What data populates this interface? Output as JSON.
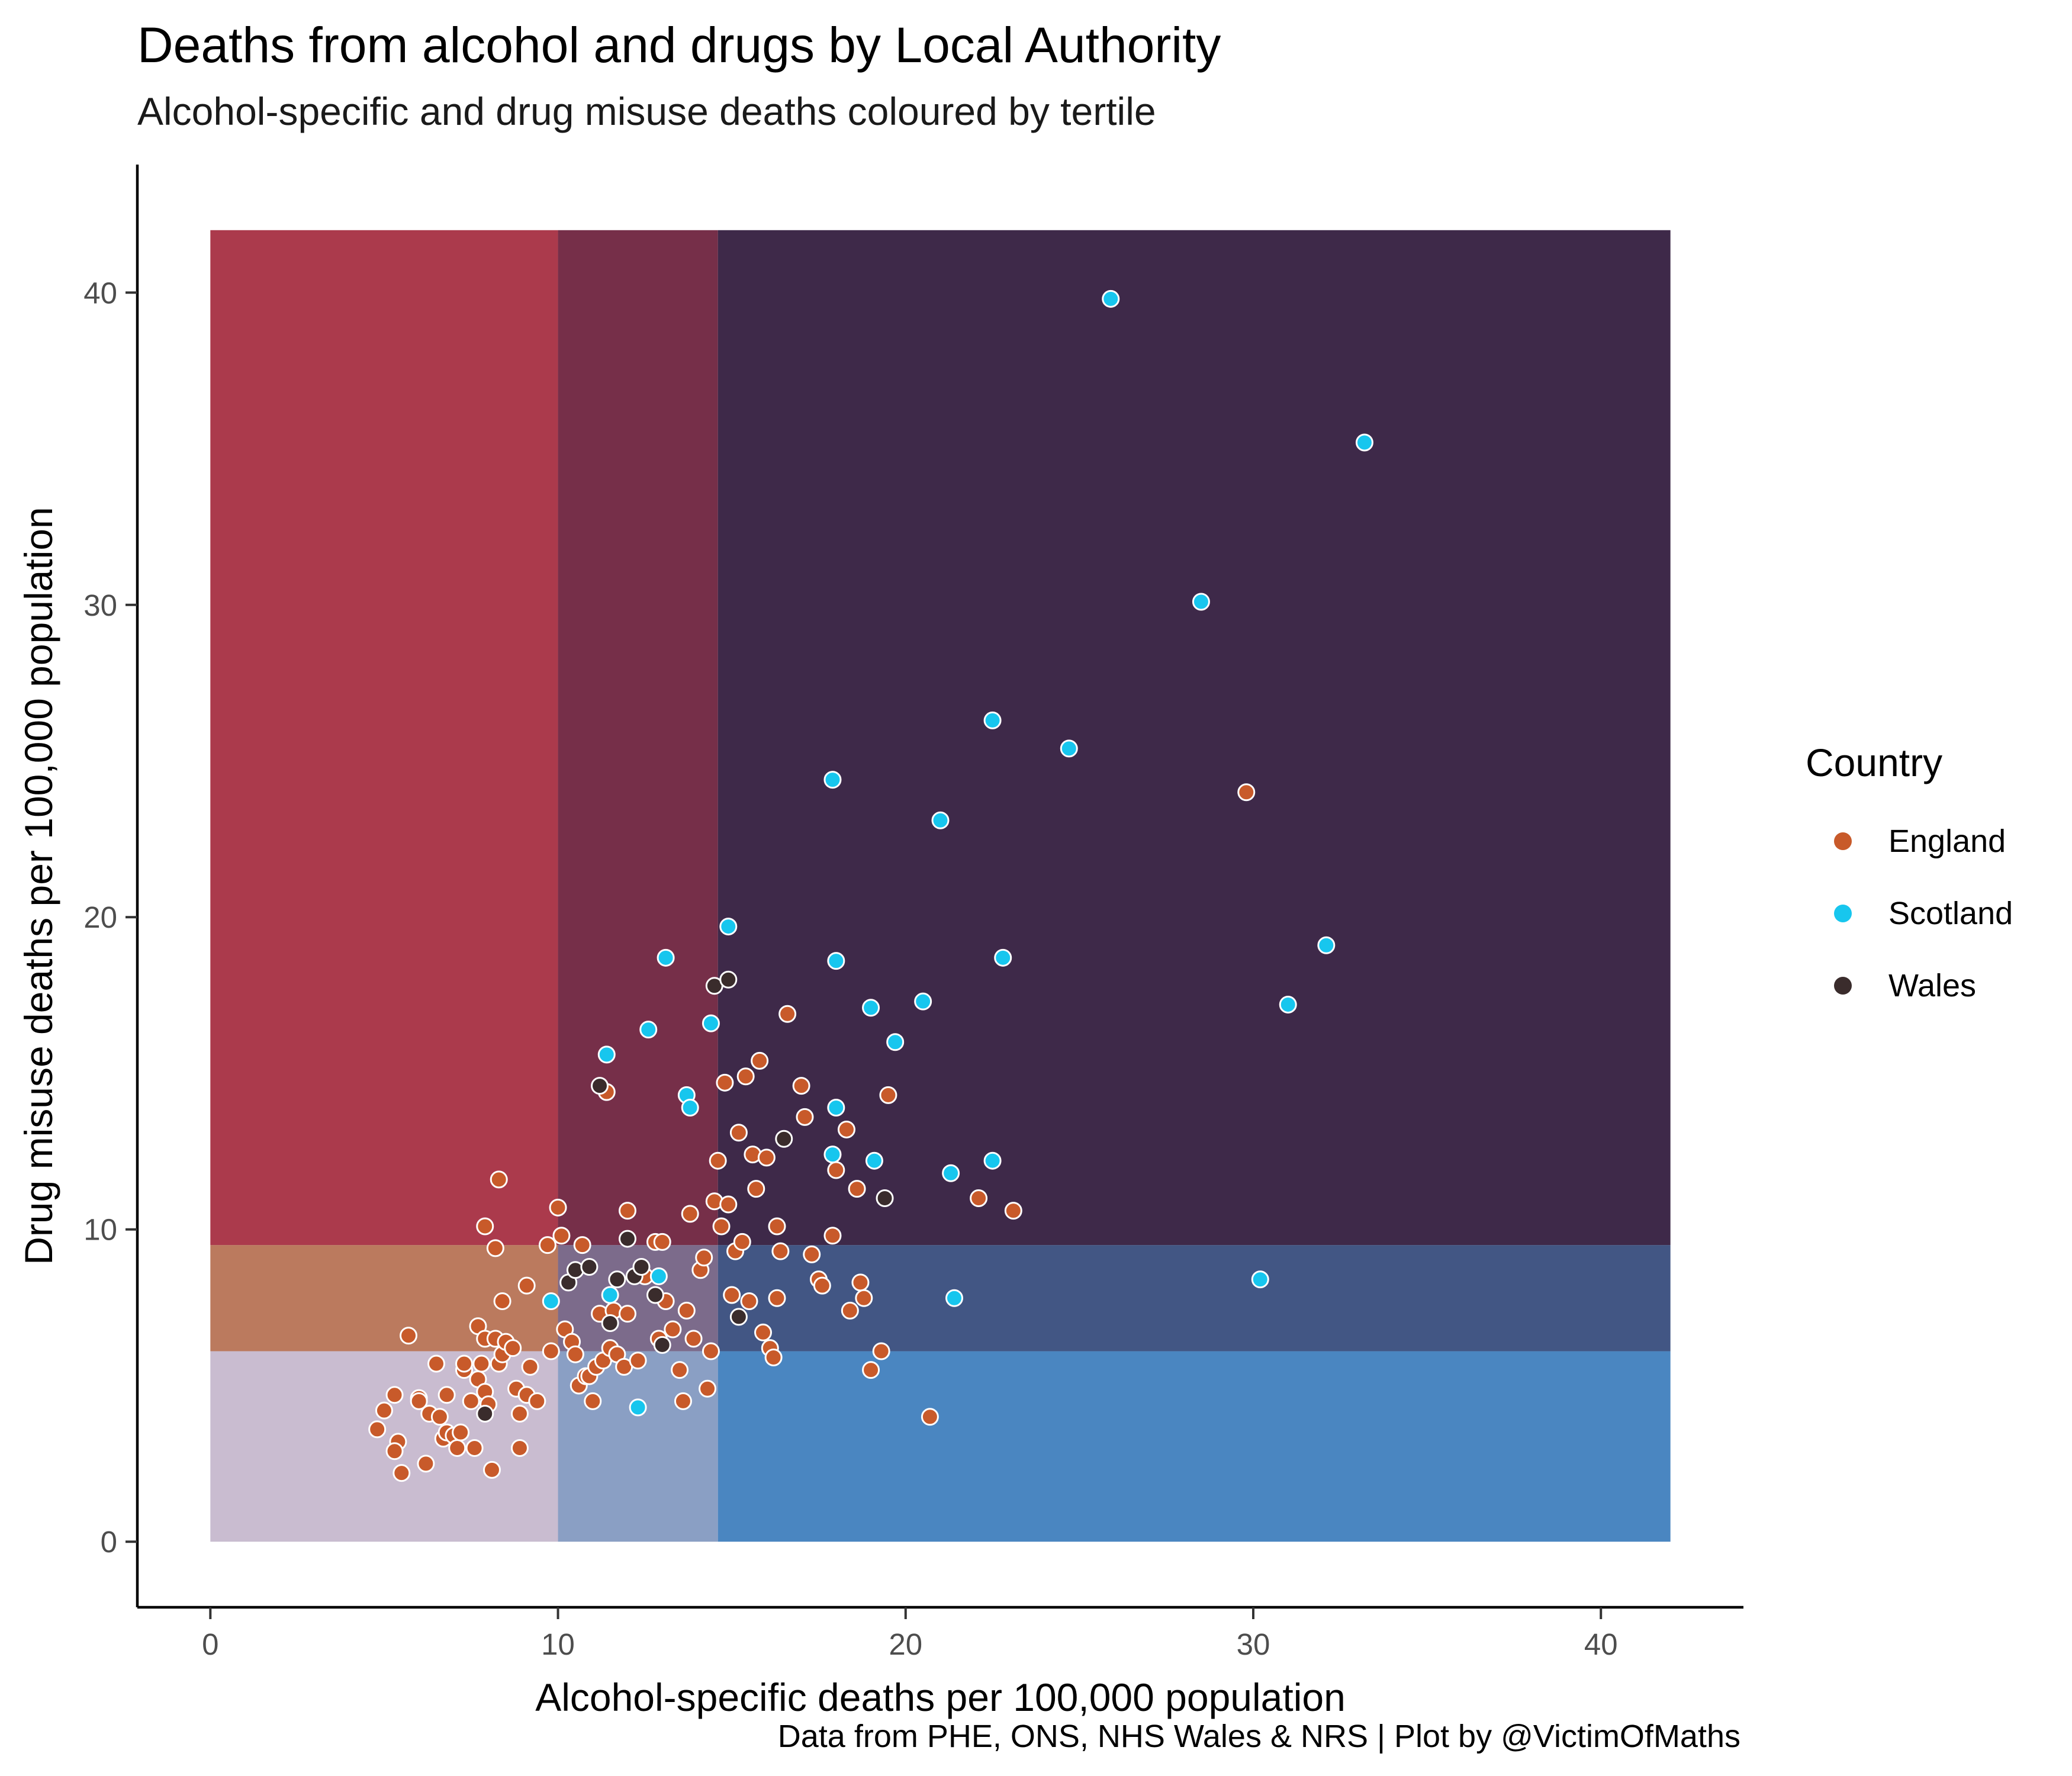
{
  "title": "Deaths from alcohol and drugs by Local Authority",
  "subtitle": "Alcohol-specific and drug misuse deaths coloured by tertile",
  "caption": "Data from PHE, ONS, NHS Wales & NRS | Plot by @VictimOfMaths",
  "legend": {
    "title": "Country",
    "items": [
      {
        "label": "England",
        "color": "#c85a2a"
      },
      {
        "label": "Scotland",
        "color": "#17c6ee"
      },
      {
        "label": "Wales",
        "color": "#3a2c2c"
      }
    ]
  },
  "chart_data": {
    "type": "scatter",
    "title": "Deaths from alcohol and drugs by Local Authority",
    "subtitle": "Alcohol-specific and drug misuse deaths coloured by tertile",
    "xlabel": "Alcohol-specific deaths per 100,000 population",
    "ylabel": "Drug misuse deaths per 100,000 population",
    "xlim": [
      -2.1,
      44.1
    ],
    "ylim": [
      -2.1,
      44.1
    ],
    "xticks": [
      0,
      10,
      20,
      30,
      40
    ],
    "yticks": [
      0,
      10,
      20,
      30,
      40
    ],
    "grid": false,
    "legend_position": "right",
    "tertile_breaks": {
      "x": [
        10,
        14.6
      ],
      "y": [
        6.1,
        9.5
      ],
      "max": 42
    },
    "tertile_fills": [
      [
        "#c9bcd0",
        "#8a9fc4",
        "#4a86c1"
      ],
      [
        "#bb7a5e",
        "#7c6b8b",
        "#425684"
      ],
      [
        "#ab3a4c",
        "#762f49",
        "#3e2949"
      ]
    ],
    "series": [
      {
        "name": "England",
        "color": "#c85a2a",
        "points": [
          [
            5.3,
            4.7
          ],
          [
            5.0,
            4.2
          ],
          [
            4.8,
            3.6
          ],
          [
            5.4,
            3.2
          ],
          [
            5.3,
            2.9
          ],
          [
            5.5,
            2.2
          ],
          [
            5.7,
            6.6
          ],
          [
            6.0,
            4.6
          ],
          [
            6.0,
            4.5
          ],
          [
            6.2,
            2.5
          ],
          [
            6.3,
            4.1
          ],
          [
            6.5,
            5.7
          ],
          [
            6.6,
            4.0
          ],
          [
            6.7,
            3.3
          ],
          [
            6.8,
            3.5
          ],
          [
            6.8,
            4.7
          ],
          [
            7.0,
            3.4
          ],
          [
            7.1,
            3.0
          ],
          [
            7.2,
            3.5
          ],
          [
            7.3,
            5.5
          ],
          [
            7.3,
            5.7
          ],
          [
            7.5,
            4.5
          ],
          [
            7.6,
            3.0
          ],
          [
            7.7,
            5.2
          ],
          [
            7.7,
            6.9
          ],
          [
            7.8,
            5.7
          ],
          [
            7.9,
            4.8
          ],
          [
            7.9,
            6.5
          ],
          [
            8.0,
            4.4
          ],
          [
            8.1,
            2.3
          ],
          [
            8.2,
            6.5
          ],
          [
            8.3,
            5.7
          ],
          [
            8.4,
            6.0
          ],
          [
            8.5,
            6.4
          ],
          [
            8.7,
            6.2
          ],
          [
            8.8,
            4.9
          ],
          [
            8.9,
            3.0
          ],
          [
            8.9,
            4.1
          ],
          [
            9.1,
            4.7
          ],
          [
            9.2,
            5.6
          ],
          [
            9.4,
            4.5
          ],
          [
            7.9,
            10.1
          ],
          [
            8.2,
            9.4
          ],
          [
            8.3,
            11.6
          ],
          [
            8.4,
            7.7
          ],
          [
            9.1,
            8.2
          ],
          [
            9.7,
            9.5
          ],
          [
            9.8,
            6.1
          ],
          [
            10.0,
            10.7
          ],
          [
            10.1,
            9.8
          ],
          [
            10.2,
            6.8
          ],
          [
            10.4,
            6.4
          ],
          [
            10.5,
            6.0
          ],
          [
            10.6,
            5.0
          ],
          [
            10.7,
            9.5
          ],
          [
            10.8,
            5.3
          ],
          [
            10.9,
            5.3
          ],
          [
            11.0,
            4.5
          ],
          [
            11.1,
            5.6
          ],
          [
            11.2,
            7.3
          ],
          [
            11.3,
            5.8
          ],
          [
            11.4,
            14.4
          ],
          [
            11.5,
            6.2
          ],
          [
            11.6,
            7.4
          ],
          [
            11.7,
            6.0
          ],
          [
            11.9,
            5.6
          ],
          [
            12.0,
            10.6
          ],
          [
            12.0,
            7.3
          ],
          [
            12.3,
            5.8
          ],
          [
            12.5,
            8.5
          ],
          [
            12.8,
            9.6
          ],
          [
            12.9,
            6.5
          ],
          [
            13.0,
            9.6
          ],
          [
            13.1,
            7.7
          ],
          [
            13.3,
            6.8
          ],
          [
            13.5,
            5.5
          ],
          [
            13.6,
            4.5
          ],
          [
            13.7,
            7.4
          ],
          [
            13.8,
            10.5
          ],
          [
            13.9,
            6.5
          ],
          [
            14.1,
            8.7
          ],
          [
            14.2,
            9.1
          ],
          [
            14.3,
            4.9
          ],
          [
            14.4,
            6.1
          ],
          [
            14.5,
            10.9
          ],
          [
            14.6,
            12.2
          ],
          [
            14.7,
            10.1
          ],
          [
            14.8,
            14.7
          ],
          [
            14.9,
            10.8
          ],
          [
            15.0,
            7.9
          ],
          [
            15.1,
            9.3
          ],
          [
            15.2,
            13.1
          ],
          [
            15.3,
            9.6
          ],
          [
            15.4,
            14.9
          ],
          [
            15.5,
            7.7
          ],
          [
            15.6,
            12.4
          ],
          [
            15.7,
            11.3
          ],
          [
            15.8,
            15.4
          ],
          [
            15.9,
            6.7
          ],
          [
            16.0,
            12.3
          ],
          [
            16.1,
            6.2
          ],
          [
            16.2,
            5.9
          ],
          [
            16.3,
            7.8
          ],
          [
            16.3,
            10.1
          ],
          [
            16.4,
            9.3
          ],
          [
            16.6,
            16.9
          ],
          [
            17.0,
            14.6
          ],
          [
            17.1,
            13.6
          ],
          [
            17.3,
            9.2
          ],
          [
            17.5,
            8.4
          ],
          [
            17.6,
            8.2
          ],
          [
            17.9,
            9.8
          ],
          [
            18.0,
            11.9
          ],
          [
            18.3,
            13.2
          ],
          [
            18.4,
            7.4
          ],
          [
            18.6,
            11.3
          ],
          [
            18.7,
            8.3
          ],
          [
            18.8,
            7.8
          ],
          [
            19.0,
            5.5
          ],
          [
            19.3,
            6.1
          ],
          [
            19.5,
            14.3
          ],
          [
            20.7,
            4.0
          ],
          [
            22.1,
            11.0
          ],
          [
            23.1,
            10.6
          ],
          [
            29.8,
            24.0
          ]
        ]
      },
      {
        "name": "Scotland",
        "color": "#17c6ee",
        "points": [
          [
            9.8,
            7.7
          ],
          [
            11.4,
            15.6
          ],
          [
            11.5,
            7.9
          ],
          [
            12.3,
            4.3
          ],
          [
            12.6,
            16.4
          ],
          [
            12.9,
            8.5
          ],
          [
            13.1,
            18.7
          ],
          [
            13.7,
            14.3
          ],
          [
            13.8,
            13.9
          ],
          [
            14.4,
            16.6
          ],
          [
            14.9,
            19.7
          ],
          [
            17.9,
            12.4
          ],
          [
            17.9,
            24.4
          ],
          [
            18.0,
            18.6
          ],
          [
            18.0,
            13.9
          ],
          [
            19.0,
            17.1
          ],
          [
            19.1,
            12.2
          ],
          [
            19.7,
            16.0
          ],
          [
            20.5,
            17.3
          ],
          [
            21.0,
            23.1
          ],
          [
            21.3,
            11.8
          ],
          [
            21.4,
            7.8
          ],
          [
            22.5,
            12.2
          ],
          [
            22.5,
            26.3
          ],
          [
            22.8,
            18.7
          ],
          [
            24.7,
            25.4
          ],
          [
            25.9,
            39.8
          ],
          [
            28.5,
            30.1
          ],
          [
            30.2,
            8.4
          ],
          [
            31.0,
            17.2
          ],
          [
            32.1,
            19.1
          ],
          [
            33.2,
            35.2
          ]
        ]
      },
      {
        "name": "Wales",
        "color": "#3a2c2c",
        "points": [
          [
            7.9,
            4.1
          ],
          [
            10.3,
            8.3
          ],
          [
            10.5,
            8.7
          ],
          [
            10.9,
            8.8
          ],
          [
            11.2,
            14.6
          ],
          [
            11.5,
            7.0
          ],
          [
            11.7,
            8.4
          ],
          [
            12.0,
            9.7
          ],
          [
            12.2,
            8.5
          ],
          [
            12.4,
            8.8
          ],
          [
            12.8,
            7.9
          ],
          [
            13.0,
            6.3
          ],
          [
            14.5,
            17.8
          ],
          [
            14.9,
            18.0
          ],
          [
            15.2,
            7.2
          ],
          [
            16.5,
            12.9
          ],
          [
            19.4,
            11.0
          ]
        ]
      }
    ]
  }
}
